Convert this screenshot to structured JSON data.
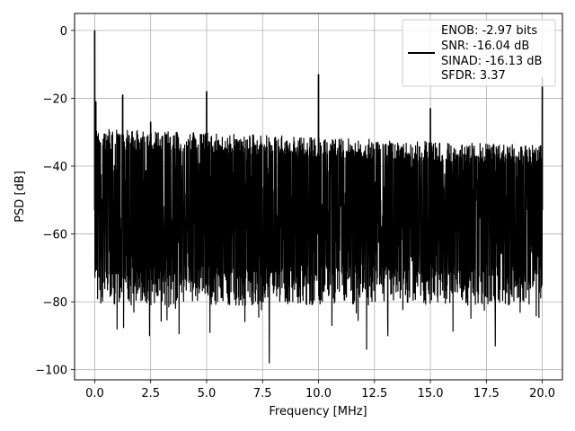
{
  "chart_data": {
    "type": "line",
    "title": "",
    "xlabel": "Frequency [MHz]",
    "ylabel": "PSD [dB]",
    "xlim": [
      -0.9,
      20.9
    ],
    "ylim": [
      -103,
      5
    ],
    "xticks": [
      0.0,
      2.5,
      5.0,
      7.5,
      10.0,
      12.5,
      15.0,
      17.5,
      20.0
    ],
    "xtick_labels": [
      "0.0",
      "2.5",
      "5.0",
      "7.5",
      "10.0",
      "12.5",
      "15.0",
      "17.5",
      "20.0"
    ],
    "yticks": [
      0,
      -20,
      -40,
      -60,
      -80,
      -100
    ],
    "ytick_labels": [
      "0",
      "−20",
      "−40",
      "−60",
      "−80",
      "−100"
    ],
    "grid": true,
    "legend_position": "top-right",
    "legend_lines": [
      "ENOB: -2.97 bits",
      "SNR: -16.04 dB",
      "SINAD: -16.13 dB",
      "SFDR: 3.37"
    ],
    "series_color": "#000000",
    "noise_floor": {
      "x_start": 0.0,
      "x_end": 20.0,
      "upper_dB_start": -29,
      "upper_dB_end": -34,
      "median_dB": -53,
      "lower_dB_typical": -75,
      "lower_dB_min": -98
    },
    "spurs": [
      {
        "x": 0.0,
        "y": 0
      },
      {
        "x": 0.05,
        "y": -21
      },
      {
        "x": 1.25,
        "y": -19
      },
      {
        "x": 2.5,
        "y": -27
      },
      {
        "x": 5.0,
        "y": -18
      },
      {
        "x": 10.0,
        "y": -13
      },
      {
        "x": 15.0,
        "y": -23
      },
      {
        "x": 20.0,
        "y": -14
      }
    ],
    "deep_dips": [
      {
        "x": 1.0,
        "y": -88
      },
      {
        "x": 2.45,
        "y": -90
      },
      {
        "x": 5.15,
        "y": -89
      },
      {
        "x": 7.8,
        "y": -98
      },
      {
        "x": 10.6,
        "y": -87
      },
      {
        "x": 12.15,
        "y": -94
      },
      {
        "x": 13.1,
        "y": -90
      },
      {
        "x": 17.9,
        "y": -93
      }
    ]
  }
}
